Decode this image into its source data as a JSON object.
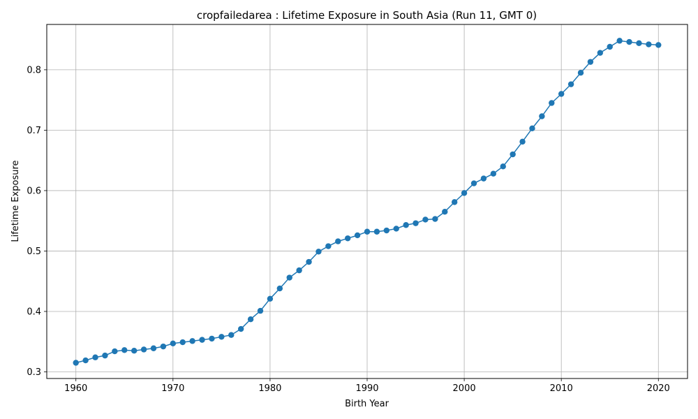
{
  "chart_data": {
    "type": "line",
    "title": "cropfailedarea : Lifetime Exposure in South Asia (Run 11, GMT 0)",
    "xlabel": "Birth Year",
    "ylabel": "Lifetime Exposure",
    "xlim": [
      1957,
      2023
    ],
    "ylim": [
      0.289,
      0.875
    ],
    "xticks": [
      1960,
      1970,
      1980,
      1990,
      2000,
      2010,
      2020
    ],
    "xtick_labels": [
      "1960",
      "1970",
      "1980",
      "1990",
      "2000",
      "2010",
      "2020"
    ],
    "yticks": [
      0.3,
      0.4,
      0.5,
      0.6,
      0.7,
      0.8
    ],
    "ytick_labels": [
      "0.3",
      "0.4",
      "0.5",
      "0.6",
      "0.7",
      "0.8"
    ],
    "grid": true,
    "marker": "circle",
    "color": "#1f77b4",
    "series": [
      {
        "x": [
          1960,
          1961,
          1962,
          1963,
          1964,
          1965,
          1966,
          1967,
          1968,
          1969,
          1970,
          1971,
          1972,
          1973,
          1974,
          1975,
          1976,
          1977,
          1978,
          1979,
          1980,
          1981,
          1982,
          1983,
          1984,
          1985,
          1986,
          1987,
          1988,
          1989,
          1990,
          1991,
          1992,
          1993,
          1994,
          1995,
          1996,
          1997,
          1998,
          1999,
          2000,
          2001,
          2002,
          2003,
          2004,
          2005,
          2006,
          2007,
          2008,
          2009,
          2010,
          2011,
          2012,
          2013,
          2014,
          2015,
          2016,
          2017,
          2018,
          2019,
          2020
        ],
        "y": [
          0.315,
          0.319,
          0.324,
          0.327,
          0.334,
          0.336,
          0.335,
          0.337,
          0.339,
          0.342,
          0.347,
          0.349,
          0.351,
          0.353,
          0.355,
          0.358,
          0.361,
          0.371,
          0.387,
          0.401,
          0.421,
          0.438,
          0.456,
          0.468,
          0.482,
          0.499,
          0.508,
          0.516,
          0.521,
          0.526,
          0.532,
          0.532,
          0.534,
          0.537,
          0.543,
          0.546,
          0.552,
          0.553,
          0.565,
          0.581,
          0.596,
          0.612,
          0.62,
          0.628,
          0.64,
          0.66,
          0.681,
          0.703,
          0.723,
          0.745,
          0.76,
          0.776,
          0.795,
          0.813,
          0.828,
          0.838,
          0.848,
          0.846,
          0.844,
          0.842,
          0.841
        ]
      }
    ]
  }
}
